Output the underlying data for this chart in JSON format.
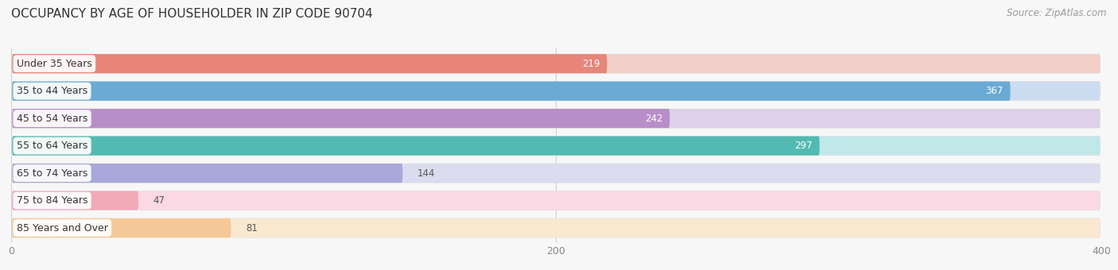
{
  "title": "OCCUPANCY BY AGE OF HOUSEHOLDER IN ZIP CODE 90704",
  "source": "Source: ZipAtlas.com",
  "categories": [
    "Under 35 Years",
    "35 to 44 Years",
    "45 to 54 Years",
    "55 to 64 Years",
    "65 to 74 Years",
    "75 to 84 Years",
    "85 Years and Over"
  ],
  "values": [
    219,
    367,
    242,
    297,
    144,
    47,
    81
  ],
  "bar_colors": [
    "#E8857A",
    "#6AAAD4",
    "#B88EC8",
    "#52BAB2",
    "#A8A8D8",
    "#F2AAB8",
    "#F5C898"
  ],
  "bar_bg_colors": [
    "#F2CFC8",
    "#CCDCF0",
    "#DDD0E8",
    "#C0E8E8",
    "#DCDCF0",
    "#FAD8E4",
    "#FAE8D0"
  ],
  "xlim": [
    0,
    400
  ],
  "xticks": [
    0,
    200,
    400
  ],
  "background_color": "#f7f7f7",
  "title_fontsize": 11,
  "label_fontsize": 9,
  "value_fontsize": 8.5,
  "source_fontsize": 8.5
}
